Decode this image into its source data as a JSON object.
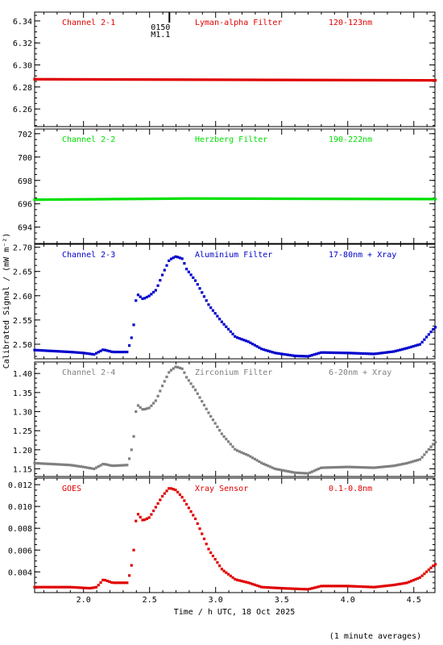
{
  "figure": {
    "shared_ylabel": "Calibrated Signal / (mW m⁻²)",
    "xlabel": "Time / h UTC, 18 Oct 2025",
    "footnote": "(1 minute averages)",
    "x_range": [
      1.63,
      4.66
    ],
    "x_ticks": [
      2.0,
      2.5,
      3.0,
      3.5,
      4.0,
      4.5
    ],
    "x_tick_labels": [
      "2.0",
      "2.5",
      "3.0",
      "3.5",
      "4.0",
      "4.5"
    ],
    "event_marker": {
      "x": 2.65,
      "label1": "0150",
      "label2": "M1.1"
    }
  },
  "chart_data": [
    {
      "type": "scatter",
      "panel_labels": [
        "Channel 2-1",
        "Lyman-alpha Filter",
        "120-123nm"
      ],
      "color": "#e00000",
      "ylim": [
        6.244,
        6.348
      ],
      "yticks": [
        6.26,
        6.28,
        6.3,
        6.32,
        6.34
      ],
      "ytick_labels": [
        "6.26",
        "6.28",
        "6.30",
        "6.32",
        "6.34"
      ],
      "keypoints": [
        [
          1.63,
          6.287
        ],
        [
          4.66,
          6.286
        ]
      ]
    },
    {
      "type": "scatter",
      "panel_labels": [
        "Channel 2-2",
        "Herzberg Filter",
        "190-222nm"
      ],
      "color": "#00e000",
      "ylim": [
        692.6,
        702.4
      ],
      "yticks": [
        694,
        696,
        698,
        700,
        702
      ],
      "ytick_labels": [
        "694",
        "696",
        "698",
        "700",
        "702"
      ],
      "keypoints": [
        [
          1.63,
          696.35
        ],
        [
          2.8,
          696.45
        ],
        [
          4.66,
          696.4
        ]
      ]
    },
    {
      "type": "scatter",
      "panel_labels": [
        "Channel 2-3",
        "Aluminium Filter",
        "17-80nm + Xray"
      ],
      "color": "#0000cc",
      "ylim": [
        2.47,
        2.706
      ],
      "yticks": [
        2.5,
        2.55,
        2.6,
        2.65,
        2.7
      ],
      "ytick_labels": [
        "2.50",
        "2.55",
        "2.60",
        "2.65",
        "2.70"
      ],
      "keypoints": [
        [
          1.63,
          2.488
        ],
        [
          1.9,
          2.484
        ],
        [
          2.0,
          2.482
        ],
        [
          2.08,
          2.479
        ],
        [
          2.15,
          2.489
        ],
        [
          2.22,
          2.484
        ],
        [
          2.33,
          2.484
        ],
        [
          2.35,
          2.5
        ],
        [
          2.37,
          2.52
        ],
        [
          2.39,
          2.56
        ],
        [
          2.4,
          2.605
        ],
        [
          2.45,
          2.593
        ],
        [
          2.5,
          2.6
        ],
        [
          2.55,
          2.612
        ],
        [
          2.6,
          2.645
        ],
        [
          2.65,
          2.674
        ],
        [
          2.7,
          2.681
        ],
        [
          2.75,
          2.676
        ],
        [
          2.78,
          2.655
        ],
        [
          2.85,
          2.63
        ],
        [
          2.95,
          2.58
        ],
        [
          3.05,
          2.545
        ],
        [
          3.15,
          2.515
        ],
        [
          3.25,
          2.505
        ],
        [
          3.35,
          2.49
        ],
        [
          3.45,
          2.482
        ],
        [
          3.6,
          2.476
        ],
        [
          3.7,
          2.475
        ],
        [
          3.8,
          2.483
        ],
        [
          4.0,
          2.482
        ],
        [
          4.2,
          2.48
        ],
        [
          4.35,
          2.485
        ],
        [
          4.45,
          2.492
        ],
        [
          4.55,
          2.5
        ],
        [
          4.66,
          2.535
        ]
      ]
    },
    {
      "type": "scatter",
      "panel_labels": [
        "Channel 2-4",
        "Zirconium Filter",
        "6-20nm + Xray"
      ],
      "color": "#808080",
      "ylim": [
        1.13,
        1.43
      ],
      "yticks": [
        1.15,
        1.2,
        1.25,
        1.3,
        1.35,
        1.4
      ],
      "ytick_labels": [
        "1.15",
        "1.20",
        "1.25",
        "1.30",
        "1.35",
        "1.40"
      ],
      "keypoints": [
        [
          1.63,
          1.165
        ],
        [
          1.9,
          1.16
        ],
        [
          2.0,
          1.155
        ],
        [
          2.08,
          1.15
        ],
        [
          2.15,
          1.163
        ],
        [
          2.22,
          1.158
        ],
        [
          2.33,
          1.16
        ],
        [
          2.35,
          1.18
        ],
        [
          2.37,
          1.21
        ],
        [
          2.39,
          1.26
        ],
        [
          2.4,
          1.32
        ],
        [
          2.45,
          1.305
        ],
        [
          2.5,
          1.31
        ],
        [
          2.55,
          1.33
        ],
        [
          2.6,
          1.37
        ],
        [
          2.65,
          1.405
        ],
        [
          2.7,
          1.418
        ],
        [
          2.75,
          1.412
        ],
        [
          2.78,
          1.39
        ],
        [
          2.85,
          1.355
        ],
        [
          2.95,
          1.295
        ],
        [
          3.05,
          1.24
        ],
        [
          3.15,
          1.2
        ],
        [
          3.25,
          1.185
        ],
        [
          3.35,
          1.165
        ],
        [
          3.45,
          1.15
        ],
        [
          3.6,
          1.14
        ],
        [
          3.7,
          1.138
        ],
        [
          3.8,
          1.153
        ],
        [
          4.0,
          1.155
        ],
        [
          4.2,
          1.153
        ],
        [
          4.35,
          1.158
        ],
        [
          4.45,
          1.165
        ],
        [
          4.55,
          1.175
        ],
        [
          4.66,
          1.22
        ]
      ]
    },
    {
      "type": "scatter",
      "panel_labels": [
        "GOES",
        "Xray Sensor",
        "0.1-0.8nm"
      ],
      "color": "#e00000",
      "ylim": [
        0.0021,
        0.0126
      ],
      "yticks": [
        0.004,
        0.006,
        0.008,
        0.01,
        0.012
      ],
      "ytick_labels": [
        "0.004",
        "0.006",
        "0.008",
        "0.010",
        "0.012"
      ],
      "keypoints": [
        [
          1.63,
          0.0026
        ],
        [
          1.9,
          0.0026
        ],
        [
          2.05,
          0.0025
        ],
        [
          2.1,
          0.0026
        ],
        [
          2.15,
          0.0033
        ],
        [
          2.22,
          0.003
        ],
        [
          2.33,
          0.003
        ],
        [
          2.35,
          0.0038
        ],
        [
          2.37,
          0.005
        ],
        [
          2.39,
          0.007
        ],
        [
          2.4,
          0.0095
        ],
        [
          2.45,
          0.0087
        ],
        [
          2.5,
          0.009
        ],
        [
          2.55,
          0.01
        ],
        [
          2.6,
          0.011
        ],
        [
          2.65,
          0.0117
        ],
        [
          2.7,
          0.0115
        ],
        [
          2.75,
          0.0108
        ],
        [
          2.85,
          0.0088
        ],
        [
          2.95,
          0.006
        ],
        [
          3.05,
          0.0042
        ],
        [
          3.15,
          0.0033
        ],
        [
          3.25,
          0.003
        ],
        [
          3.35,
          0.0026
        ],
        [
          3.5,
          0.0025
        ],
        [
          3.7,
          0.0024
        ],
        [
          3.8,
          0.0027
        ],
        [
          4.0,
          0.0027
        ],
        [
          4.2,
          0.0026
        ],
        [
          4.35,
          0.0028
        ],
        [
          4.45,
          0.003
        ],
        [
          4.55,
          0.0035
        ],
        [
          4.66,
          0.0047
        ]
      ]
    }
  ]
}
